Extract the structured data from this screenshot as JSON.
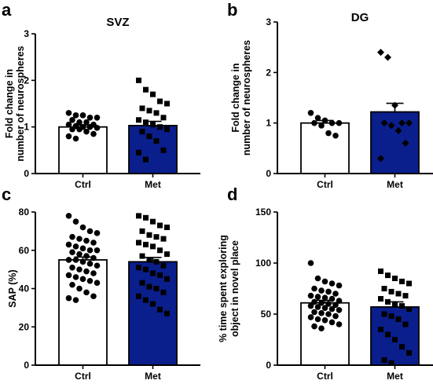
{
  "colors": {
    "ctrl_bar": "#ffffff",
    "met_bar": "#0a1e8c",
    "marks": "#000000"
  },
  "chart_data": [
    {
      "panel": "a",
      "title": "SVZ",
      "type": "bar",
      "ylabel": "Fold change in number of neurospheres",
      "ylim": [
        0,
        3
      ],
      "yticks": [
        0,
        1,
        2,
        3
      ],
      "categories": [
        "Ctrl",
        "Met"
      ],
      "values": [
        1.0,
        1.03
      ],
      "errors": [
        0.04,
        0.09
      ],
      "points": [
        [
          1.3,
          1.25,
          1.25,
          1.2,
          1.2,
          1.15,
          1.1,
          1.1,
          1.05,
          1.05,
          1.02,
          1.0,
          1.0,
          0.98,
          0.95,
          0.95,
          0.9,
          0.85,
          0.8,
          0.75
        ],
        [
          2.0,
          1.8,
          1.7,
          1.55,
          1.5,
          1.4,
          1.35,
          1.3,
          1.2,
          1.15,
          1.1,
          1.05,
          1.0,
          0.95,
          0.9,
          0.8,
          0.7,
          0.5,
          0.45,
          0.3
        ]
      ]
    },
    {
      "panel": "b",
      "title": "DG",
      "type": "bar",
      "ylabel": "Fold change in number of neurospheres",
      "ylim": [
        0,
        3
      ],
      "yticks": [
        0,
        1,
        2,
        3
      ],
      "categories": [
        "Ctrl",
        "Met"
      ],
      "values": [
        1.0,
        1.22
      ],
      "errors": [
        0.05,
        0.17
      ],
      "points": [
        [
          1.2,
          1.1,
          1.05,
          1.0,
          1.0,
          1.0,
          0.95,
          0.8,
          0.75
        ],
        [
          2.4,
          2.3,
          1.35,
          1.0,
          1.0,
          1.0,
          0.95,
          0.85,
          0.6,
          0.3
        ]
      ]
    },
    {
      "panel": "c",
      "title": "",
      "type": "bar",
      "ylabel": "SAP (%)",
      "ylim": [
        0,
        80
      ],
      "yticks": [
        0,
        20,
        40,
        60,
        80
      ],
      "categories": [
        "Ctrl",
        "Met"
      ],
      "values": [
        55,
        54
      ],
      "errors": [
        1.5,
        2.3
      ],
      "points": [
        [
          78,
          75,
          72,
          70,
          69,
          67,
          66,
          65,
          64,
          63,
          62,
          61,
          60,
          60,
          59,
          58,
          57,
          56,
          55,
          55,
          54,
          53,
          52,
          51,
          50,
          49,
          48,
          47,
          46,
          45,
          44,
          43,
          42,
          40,
          38,
          36,
          35,
          34
        ],
        [
          78,
          77,
          75,
          73,
          72,
          70,
          68,
          67,
          66,
          64,
          63,
          62,
          60,
          58,
          57,
          55,
          54,
          52,
          51,
          50,
          48,
          47,
          45,
          43,
          41,
          40,
          38,
          36,
          34,
          32,
          29,
          27
        ]
      ]
    },
    {
      "panel": "d",
      "title": "",
      "type": "bar",
      "ylabel": "% time spent exploring object in novel place",
      "ylim": [
        0,
        150
      ],
      "yticks": [
        0,
        50,
        100,
        150
      ],
      "categories": [
        "Ctrl",
        "Met"
      ],
      "values": [
        61,
        57
      ],
      "errors": [
        2.5,
        5
      ],
      "points": [
        [
          100,
          85,
          82,
          80,
          78,
          75,
          73,
          72,
          70,
          68,
          67,
          66,
          65,
          63,
          62,
          61,
          60,
          59,
          58,
          57,
          56,
          55,
          54,
          52,
          51,
          50,
          48,
          47,
          45,
          44,
          42,
          40,
          38,
          36
        ],
        [
          92,
          88,
          85,
          82,
          80,
          75,
          72,
          70,
          68,
          65,
          62,
          60,
          58,
          55,
          50,
          48,
          45,
          40,
          35,
          30,
          25,
          18,
          12,
          5,
          2
        ]
      ]
    }
  ]
}
